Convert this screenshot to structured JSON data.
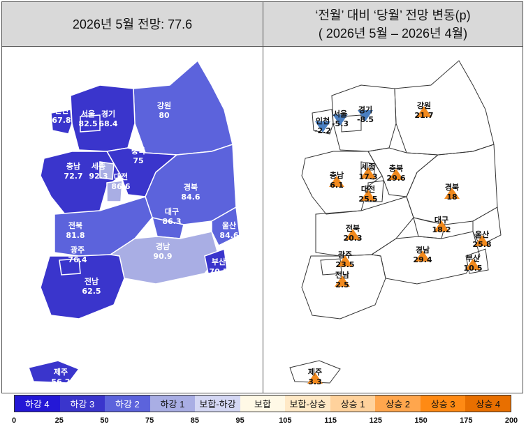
{
  "header": {
    "left_title": "2026년 5월 전망: 77.6",
    "right_title_line1": "‘전월’ 대비 ‘당월’ 전망 변동(p)",
    "right_title_line2": "( 2026년 5월 –  2026년 4월)"
  },
  "left_map": {
    "regions": [
      {
        "id": "incheon",
        "name": "인천",
        "value": "67.8",
        "color": "#3a35cc"
      },
      {
        "id": "seoul",
        "name": "서울",
        "value": "82.5",
        "color": "#3a35cc"
      },
      {
        "id": "gyeonggi",
        "name": "경기",
        "value": "68.4",
        "color": "#3a35cc"
      },
      {
        "id": "gangwon",
        "name": "강원",
        "value": "80",
        "color": "#5c63dc"
      },
      {
        "id": "chungbuk",
        "name": "충북",
        "value": "75",
        "color": "#3a35cc"
      },
      {
        "id": "chungnam",
        "name": "충남",
        "value": "72.7",
        "color": "#3a35cc"
      },
      {
        "id": "sejong",
        "name": "세종",
        "value": "92.3",
        "color": "#a9aee4"
      },
      {
        "id": "daejeon",
        "name": "대전",
        "value": "86.6",
        "color": "#a9aee4"
      },
      {
        "id": "gyeongbuk",
        "name": "경북",
        "value": "84.6",
        "color": "#5c63dc"
      },
      {
        "id": "daegu",
        "name": "대구",
        "value": "86.3",
        "color": "#5c63dc"
      },
      {
        "id": "jeonbuk",
        "name": "전북",
        "value": "81.8",
        "color": "#5c63dc"
      },
      {
        "id": "ulsan",
        "name": "울산",
        "value": "84.6",
        "color": "#5c63dc"
      },
      {
        "id": "gwangju",
        "name": "광주",
        "value": "76.4",
        "color": "#3a35cc"
      },
      {
        "id": "jeonnam",
        "name": "전남",
        "value": "62.5",
        "color": "#3a35cc"
      },
      {
        "id": "gyeongnam",
        "name": "경남",
        "value": "90.9",
        "color": "#a9aee4"
      },
      {
        "id": "busan",
        "name": "부산",
        "value": "70.5",
        "color": "#3a35cc"
      },
      {
        "id": "jeju",
        "name": "제주",
        "value": "56.2",
        "color": "#3a35cc"
      }
    ]
  },
  "right_map": {
    "regions": [
      {
        "id": "incheon",
        "name": "인천",
        "value": "-2.2",
        "direction": "down"
      },
      {
        "id": "seoul",
        "name": "서울",
        "value": "-5.3",
        "direction": "down"
      },
      {
        "id": "gyeonggi",
        "name": "경기",
        "value": "-8.5",
        "direction": "down"
      },
      {
        "id": "gangwon",
        "name": "강원",
        "value": "21.7",
        "direction": "up"
      },
      {
        "id": "chungnam",
        "name": "충남",
        "value": "6.1",
        "direction": "up"
      },
      {
        "id": "sejong",
        "name": "세종",
        "value": "17.3",
        "direction": "up"
      },
      {
        "id": "chungbuk",
        "name": "충북",
        "value": "29.6",
        "direction": "up"
      },
      {
        "id": "daejeon",
        "name": "대전",
        "value": "25.5",
        "direction": "up"
      },
      {
        "id": "gyeongbuk",
        "name": "경북",
        "value": "18",
        "direction": "up"
      },
      {
        "id": "daegu",
        "name": "대구",
        "value": "18.2",
        "direction": "up"
      },
      {
        "id": "jeonbuk",
        "name": "전북",
        "value": "20.3",
        "direction": "up"
      },
      {
        "id": "ulsan",
        "name": "울산",
        "value": "25.8",
        "direction": "up"
      },
      {
        "id": "gwangju",
        "name": "광주",
        "value": "23.5",
        "direction": "up"
      },
      {
        "id": "gyeongnam",
        "name": "경남",
        "value": "29.4",
        "direction": "up"
      },
      {
        "id": "busan",
        "name": "부산",
        "value": "10.5",
        "direction": "up"
      },
      {
        "id": "jeonnam",
        "name": "전남",
        "value": "2.5",
        "direction": "up"
      },
      {
        "id": "jeju",
        "name": "제주",
        "value": "3.3",
        "direction": "up"
      }
    ],
    "down_color": "#4a7fc1",
    "up_color": "#f28a1e"
  },
  "legend": {
    "items": [
      {
        "label": "하강 4",
        "bg": "#2418d6",
        "fg": "#ffffff"
      },
      {
        "label": "하강 3",
        "bg": "#3a35cc",
        "fg": "#ffffff"
      },
      {
        "label": "하강 2",
        "bg": "#5c63dc",
        "fg": "#ffffff"
      },
      {
        "label": "하강 1",
        "bg": "#a9aee4",
        "fg": "#111111"
      },
      {
        "label": "보합-하강",
        "bg": "#d4d7f4",
        "fg": "#111111"
      },
      {
        "label": "보합",
        "bg": "#fff9e6",
        "fg": "#111111"
      },
      {
        "label": "보합-상승",
        "bg": "#ffe9c6",
        "fg": "#111111"
      },
      {
        "label": "상승 1",
        "bg": "#ffd29c",
        "fg": "#111111"
      },
      {
        "label": "상승 2",
        "bg": "#ffa64d",
        "fg": "#111111"
      },
      {
        "label": "상승 3",
        "bg": "#ff8a14",
        "fg": "#111111"
      },
      {
        "label": "상승 4",
        "bg": "#e86f00",
        "fg": "#111111"
      }
    ],
    "ticks": [
      "0",
      "25",
      "50",
      "75",
      "85",
      "95",
      "105",
      "115",
      "125",
      "150",
      "175",
      "200"
    ]
  }
}
